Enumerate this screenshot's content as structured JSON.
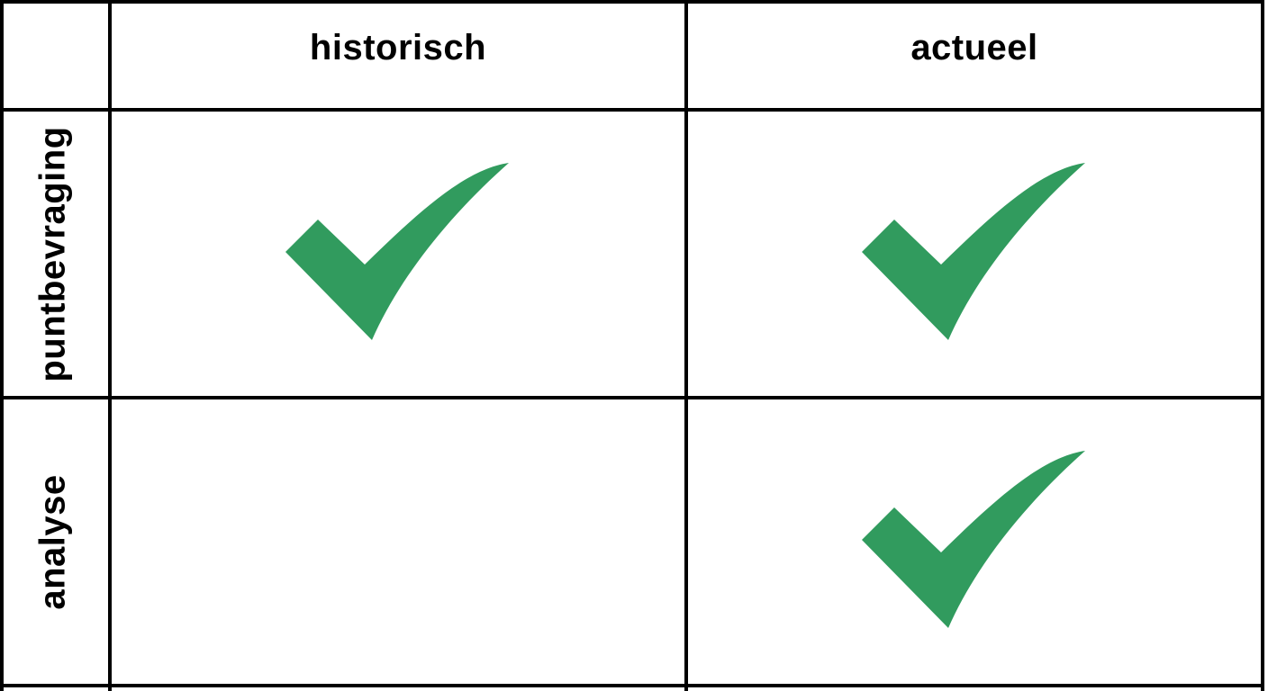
{
  "columns": [
    "historisch",
    "actueel"
  ],
  "rows": [
    {
      "label": "puntbevraging",
      "checks": [
        true,
        true
      ]
    },
    {
      "label": "analyse",
      "checks": [
        false,
        true
      ]
    }
  ],
  "check_icon": "checkmark-icon",
  "colors": {
    "check": "#319B5E",
    "grid": "#000000",
    "background": "#FFFFFF"
  }
}
